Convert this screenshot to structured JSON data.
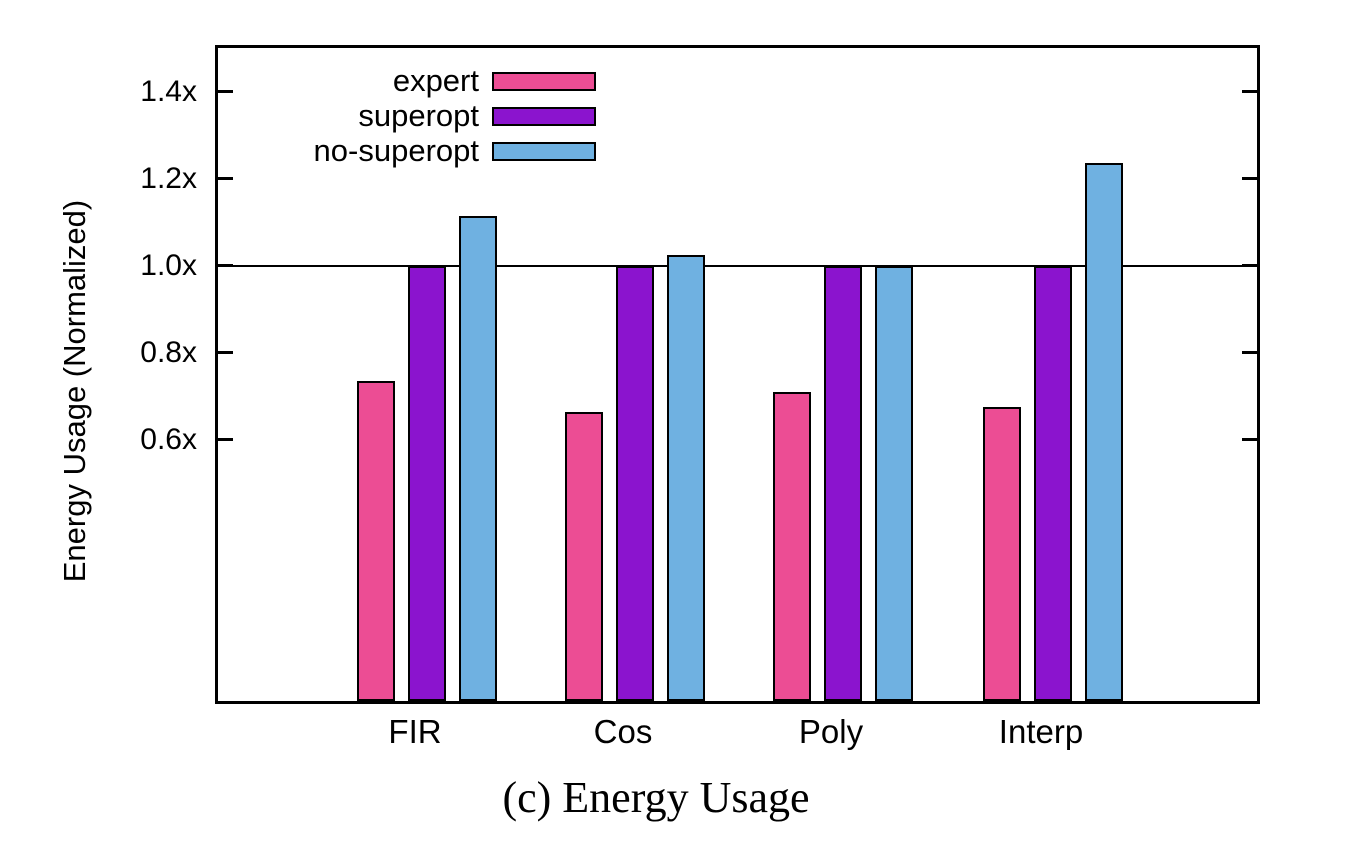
{
  "figure": {
    "caption": "(c) Energy Usage"
  },
  "chart_data": {
    "type": "bar",
    "title": "",
    "xlabel": "",
    "ylabel": "Energy Usage (Normalized)",
    "categories": [
      "FIR",
      "Cos",
      "Poly",
      "Interp"
    ],
    "series": [
      {
        "name": "expert",
        "color": "#EC4D94",
        "values": [
          0.735,
          0.665,
          0.71,
          0.675
        ]
      },
      {
        "name": "superopt",
        "color": "#8B14CE",
        "values": [
          1.0,
          1.0,
          1.0,
          1.0
        ]
      },
      {
        "name": "no-superopt",
        "color": "#6FB1E1",
        "values": [
          1.115,
          1.025,
          1.0,
          1.235
        ]
      }
    ],
    "ylim": [
      0,
      1.5
    ],
    "yticks": [
      {
        "value": 0.6,
        "label": "0.6x"
      },
      {
        "value": 0.8,
        "label": "0.8x"
      },
      {
        "value": 1.0,
        "label": "1.0x"
      },
      {
        "value": 1.2,
        "label": "1.2x"
      },
      {
        "value": 1.4,
        "label": "1.4x"
      }
    ],
    "reference_line": 1.0,
    "grid": false,
    "legend_position": "top-left-inside",
    "bar_outline_color": "#000000",
    "axis_color": "#000000",
    "background_color": "#ffffff"
  }
}
